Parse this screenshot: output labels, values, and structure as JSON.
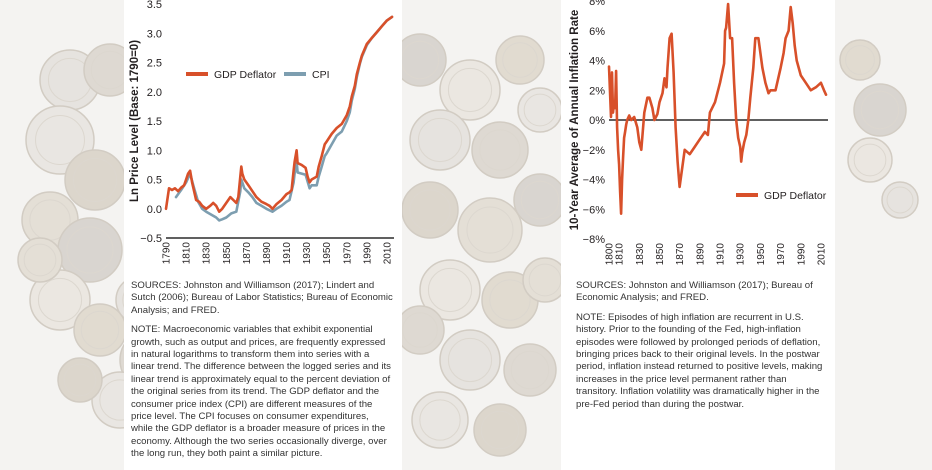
{
  "colors": {
    "gdp": "#d8502a",
    "cpi": "#7d9eb0",
    "zero": "#000000",
    "text": "#231f20"
  },
  "chart_data": [
    {
      "type": "line",
      "ylabel": "Ln Price Level (Base: 1790=0)",
      "ylim": [
        -0.5,
        3.5
      ],
      "yticks": [
        "3.5",
        "3.0",
        "2.5",
        "2.0",
        "1.5",
        "1.0",
        "0.5",
        "0.0",
        "−0.5"
      ],
      "ytick_values": [
        3.5,
        3.0,
        2.5,
        2.0,
        1.5,
        1.0,
        0.5,
        0.0,
        -0.5
      ],
      "xlim": [
        1790,
        2017
      ],
      "xticks": [
        "1790",
        "1810",
        "1830",
        "1850",
        "1870",
        "1890",
        "1910",
        "1930",
        "1950",
        "1970",
        "1990",
        "2010"
      ],
      "xtick_values": [
        1790,
        1810,
        1830,
        1850,
        1870,
        1890,
        1910,
        1930,
        1950,
        1970,
        1990,
        2010
      ],
      "legend_position": "top-left",
      "series": [
        {
          "name": "GDP Deflator",
          "color": "#d8502a",
          "x": [
            1790,
            1793,
            1796,
            1799,
            1802,
            1805,
            1808,
            1810,
            1812,
            1814,
            1816,
            1818,
            1820,
            1823,
            1826,
            1830,
            1834,
            1837,
            1840,
            1843,
            1846,
            1850,
            1854,
            1857,
            1860,
            1862,
            1864,
            1865,
            1866,
            1868,
            1872,
            1876,
            1880,
            1885,
            1890,
            1893,
            1896,
            1900,
            1905,
            1910,
            1913,
            1915,
            1917,
            1918,
            1920,
            1921,
            1925,
            1929,
            1931,
            1933,
            1935,
            1940,
            1942,
            1945,
            1948,
            1950,
            1955,
            1960,
            1965,
            1970,
            1973,
            1975,
            1978,
            1980,
            1983,
            1985,
            1990,
            1995,
            2000,
            2005,
            2010,
            2015
          ],
          "y": [
            0.0,
            0.35,
            0.32,
            0.35,
            0.3,
            0.36,
            0.4,
            0.5,
            0.6,
            0.65,
            0.45,
            0.3,
            0.15,
            0.12,
            0.05,
            0.0,
            0.05,
            0.1,
            0.05,
            -0.05,
            0.0,
            0.1,
            0.2,
            0.15,
            0.1,
            0.2,
            0.55,
            0.72,
            0.6,
            0.5,
            0.4,
            0.3,
            0.2,
            0.12,
            0.08,
            0.05,
            0.0,
            0.08,
            0.15,
            0.25,
            0.28,
            0.32,
            0.65,
            0.8,
            1.0,
            0.78,
            0.75,
            0.7,
            0.55,
            0.45,
            0.5,
            0.55,
            0.72,
            0.9,
            1.1,
            1.15,
            1.28,
            1.38,
            1.45,
            1.6,
            1.75,
            1.92,
            2.1,
            2.3,
            2.5,
            2.62,
            2.82,
            2.92,
            3.02,
            3.12,
            3.22,
            3.28
          ]
        },
        {
          "name": "CPI",
          "color": "#7d9eb0",
          "x": [
            1800,
            1805,
            1810,
            1814,
            1818,
            1822,
            1826,
            1830,
            1835,
            1840,
            1843,
            1846,
            1850,
            1855,
            1860,
            1864,
            1865,
            1866,
            1868,
            1872,
            1876,
            1880,
            1885,
            1890,
            1896,
            1900,
            1905,
            1910,
            1913,
            1917,
            1918,
            1920,
            1921,
            1925,
            1929,
            1933,
            1935,
            1940,
            1942,
            1945,
            1948,
            1950,
            1955,
            1960,
            1965,
            1970,
            1973,
            1975,
            1978,
            1980,
            1983,
            1985,
            1990,
            1995,
            2000,
            2005,
            2010,
            2015
          ],
          "y": [
            0.2,
            0.32,
            0.45,
            0.6,
            0.35,
            0.12,
            0.0,
            -0.05,
            -0.1,
            -0.15,
            -0.2,
            -0.18,
            -0.15,
            -0.08,
            -0.05,
            0.3,
            0.5,
            0.45,
            0.35,
            0.28,
            0.2,
            0.1,
            0.05,
            0.0,
            -0.05,
            0.0,
            0.05,
            0.12,
            0.15,
            0.45,
            0.6,
            0.82,
            0.62,
            0.6,
            0.58,
            0.35,
            0.4,
            0.4,
            0.55,
            0.72,
            0.9,
            0.95,
            1.1,
            1.25,
            1.32,
            1.5,
            1.65,
            1.85,
            2.05,
            2.25,
            2.48,
            2.6,
            2.8,
            2.92,
            3.02,
            3.12,
            3.22,
            3.28
          ]
        }
      ]
    },
    {
      "type": "line",
      "ylabel": "10-Year Average of Annual Inflation Rate",
      "ylim": [
        -8,
        8
      ],
      "yticks": [
        "8%",
        "6%",
        "4%",
        "2%",
        "0%",
        "−2%",
        "−4%",
        "−6%",
        "−8%"
      ],
      "ytick_values": [
        8,
        6,
        4,
        2,
        0,
        -2,
        -4,
        -6,
        -8
      ],
      "xlim": [
        1800,
        2017
      ],
      "xticks": [
        "1800",
        "1810",
        "1830",
        "1850",
        "1870",
        "1890",
        "1910",
        "1930",
        "1950",
        "1970",
        "1990",
        "2010"
      ],
      "xtick_values": [
        1800,
        1810,
        1830,
        1850,
        1870,
        1890,
        1910,
        1930,
        1950,
        1970,
        1990,
        2010
      ],
      "legend_position": "bottom-right",
      "series": [
        {
          "name": "GDP Deflator",
          "color": "#d8502a",
          "x": [
            1800,
            1802,
            1803,
            1804,
            1805,
            1806,
            1807,
            1808,
            1809,
            1810,
            1811,
            1812,
            1813,
            1814,
            1815,
            1816,
            1817,
            1818,
            1820,
            1822,
            1825,
            1828,
            1830,
            1832,
            1835,
            1838,
            1840,
            1843,
            1845,
            1848,
            1850,
            1853,
            1855,
            1857,
            1858,
            1860,
            1862,
            1864,
            1866,
            1868,
            1870,
            1875,
            1880,
            1885,
            1890,
            1895,
            1898,
            1900,
            1905,
            1910,
            1914,
            1915,
            1916,
            1918,
            1920,
            1922,
            1924,
            1926,
            1928,
            1930,
            1931,
            1932,
            1934,
            1936,
            1938,
            1940,
            1943,
            1945,
            1948,
            1950,
            1952,
            1955,
            1958,
            1960,
            1965,
            1970,
            1973,
            1975,
            1978,
            1980,
            1982,
            1984,
            1986,
            1990,
            1995,
            2000,
            2005,
            2010,
            2013,
            2015
          ],
          "y": [
            3.6,
            0.2,
            3.2,
            0.5,
            1.2,
            0.8,
            3.3,
            -0.5,
            -2.0,
            -3.0,
            -4.8,
            -6.3,
            -4.0,
            -2.5,
            -1.2,
            -0.8,
            -0.3,
            0.0,
            0.3,
            0.0,
            0.2,
            -0.5,
            -1.5,
            -2.0,
            0.5,
            1.5,
            1.5,
            0.8,
            0.0,
            0.4,
            1.2,
            1.8,
            2.8,
            2.2,
            3.5,
            5.5,
            5.8,
            3.2,
            -0.5,
            -2.8,
            -4.5,
            -2.0,
            -2.3,
            -1.8,
            -1.3,
            -0.8,
            -1.0,
            0.5,
            1.2,
            2.5,
            3.8,
            6.0,
            6.2,
            7.8,
            5.5,
            5.5,
            2.5,
            0.0,
            -1.2,
            -1.8,
            -2.8,
            -2.2,
            -1.5,
            -1.0,
            0.0,
            1.5,
            3.5,
            5.5,
            5.5,
            4.5,
            3.5,
            2.5,
            1.8,
            2.0,
            2.0,
            3.5,
            4.5,
            5.5,
            6.0,
            7.6,
            6.5,
            5.0,
            4.0,
            3.0,
            2.5,
            2.0,
            2.2,
            2.5,
            2.0,
            1.7
          ]
        }
      ]
    }
  ],
  "left_notes": {
    "sources": "SOURCES: Johnston and Williamson (2017); Lindert and Sutch (2006); Bureau of Labor Statistics; Bureau of Economic Analysis; and FRED.",
    "note": "NOTE: Macroeconomic variables that exhibit exponential growth, such as output and prices, are frequently expressed in natural logarithms to transform them into series with a linear trend. The difference between the logged series and its linear trend is approximately equal to the percent deviation of the original series from its trend. The GDP deflator and the consumer price index (CPI) are different measures of the price level. The CPI focuses on consumer expenditures, while the GDP deflator is a broader measure of prices in the economy. Although the two series occasionally diverge, over the long run, they both paint a similar picture."
  },
  "right_notes": {
    "sources": "SOURCES: Johnston and Williamson (2017); Bureau of Economic Analysis; and FRED.",
    "note": "NOTE: Episodes of high inflation are recurrent in U.S. history. Prior to the founding of the Fed, high-inflation episodes were followed by prolonged periods of deflation, bringing prices back to their original levels. In the postwar period, inflation instead returned to positive levels, making increases in the price level permanent rather than transitory. Inflation volatility was dramatically higher in the pre-Fed period than during the postwar."
  }
}
